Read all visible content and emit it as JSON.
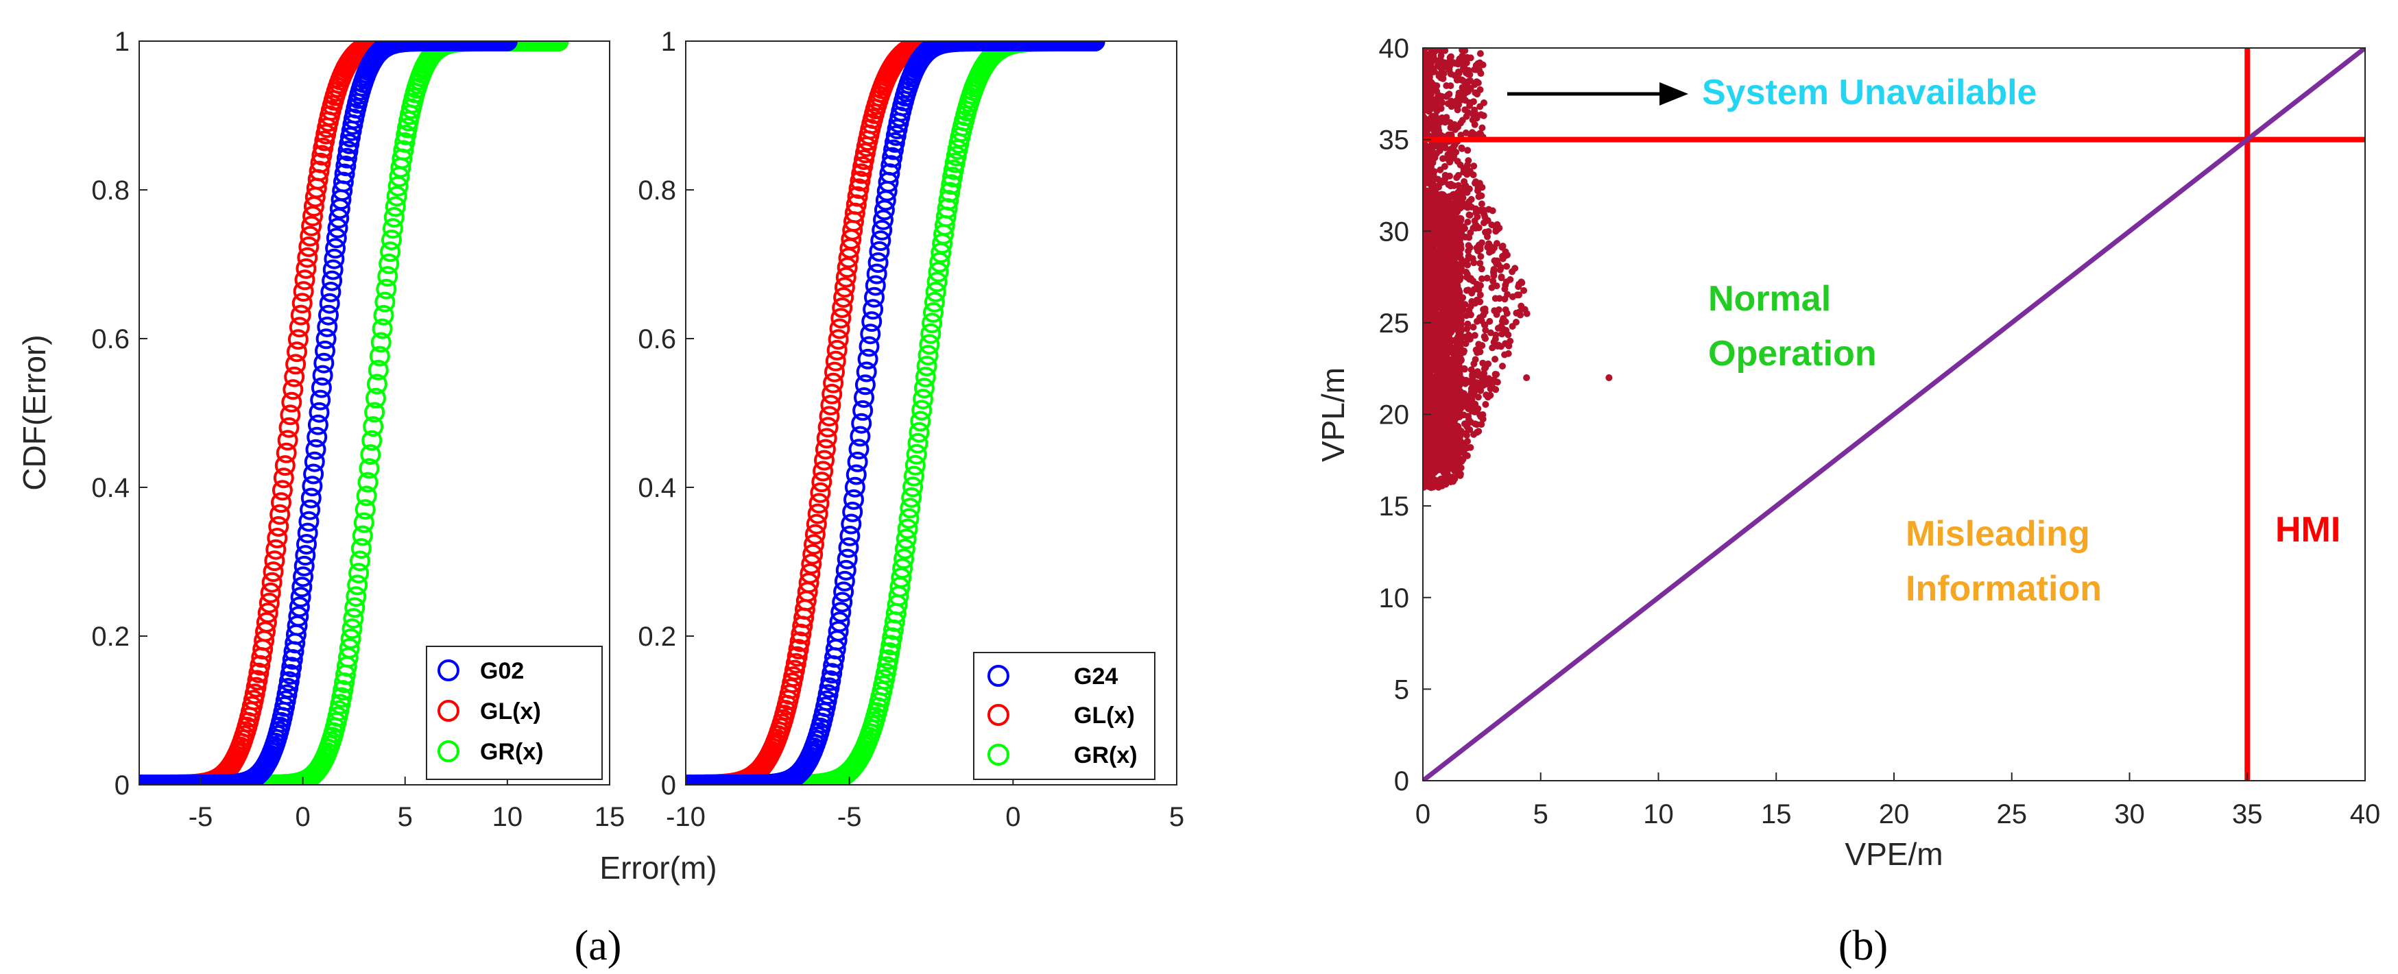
{
  "panels": {
    "a": "(a)",
    "b": "(b)"
  },
  "colors": {
    "blue": "#0000ff",
    "red": "#ff0000",
    "green": "#00ff00",
    "scatter": "#b5102a",
    "diag": "#7b2d9c",
    "cyan": "#23d5f2",
    "orange": "#f5a623",
    "annot_green": "#22cc22"
  },
  "chart_data": [
    {
      "type": "line",
      "title": "",
      "xlabel": "Error(m)",
      "ylabel": "CDF(Error)",
      "xlim": [
        -8,
        15
      ],
      "ylim": [
        0,
        1
      ],
      "xticks": [
        -5,
        0,
        5,
        10,
        15
      ],
      "yticks": [
        0,
        0.2,
        0.4,
        0.6,
        0.8,
        1
      ],
      "ytick_labels": [
        "0",
        "0.2",
        "0.4",
        "0.6",
        "0.8",
        "1"
      ],
      "legend": "bottom-right",
      "series": [
        {
          "name": "G02",
          "color": "blue",
          "mu": 0.8,
          "s": 1.35,
          "range": [
            -8,
            10
          ]
        },
        {
          "name": "GL(x)",
          "color": "red",
          "mu": -0.6,
          "s": 1.5,
          "range": [
            -8,
            12.5
          ]
        },
        {
          "name": "GR(x)",
          "color": "green",
          "mu": 3.5,
          "s": 1.35,
          "range": [
            -8,
            12.5
          ]
        }
      ]
    },
    {
      "type": "line",
      "title": "",
      "xlabel": "",
      "ylabel": "",
      "xlim": [
        -10,
        5
      ],
      "ylim": [
        0,
        1
      ],
      "xticks": [
        -10,
        -5,
        0,
        5
      ],
      "yticks": [
        0,
        0.2,
        0.4,
        0.6,
        0.8,
        1
      ],
      "ytick_labels": [
        "0",
        "0.2",
        "0.4",
        "0.6",
        "0.8",
        "1"
      ],
      "legend": "bottom-right",
      "series": [
        {
          "name": "G24",
          "color": "blue",
          "mu": -4.6,
          "s": 0.9,
          "range": [
            -10,
            2.5
          ]
        },
        {
          "name": "GL(x)",
          "color": "red",
          "mu": -5.6,
          "s": 1.05,
          "range": [
            -10,
            2.5
          ]
        },
        {
          "name": "GR(x)",
          "color": "green",
          "mu": -2.8,
          "s": 1.05,
          "range": [
            -10,
            2.5
          ]
        }
      ]
    },
    {
      "type": "scatter",
      "title": "",
      "xlabel": "VPE/m",
      "ylabel": "VPL/m",
      "xlim": [
        0,
        40
      ],
      "ylim": [
        0,
        40
      ],
      "xticks": [
        0,
        5,
        10,
        15,
        20,
        25,
        30,
        35,
        40
      ],
      "yticks": [
        0,
        5,
        10,
        15,
        20,
        25,
        30,
        35,
        40
      ],
      "alert_limit": 35,
      "scatter_region": {
        "vpe_range": [
          0,
          4.9
        ],
        "vpl_range": [
          16,
          40
        ]
      },
      "outliers": [
        {
          "x": 4.4,
          "y": 22
        },
        {
          "x": 7.9,
          "y": 22
        }
      ],
      "diagonal": {
        "from": [
          0,
          0
        ],
        "to": [
          40,
          40
        ]
      },
      "annotations": {
        "unavailable": "System Unavailable",
        "normal_1": "Normal",
        "normal_2": "Operation",
        "misleading_1": "Misleading",
        "misleading_2": "Information",
        "hmi": "HMI"
      }
    }
  ]
}
